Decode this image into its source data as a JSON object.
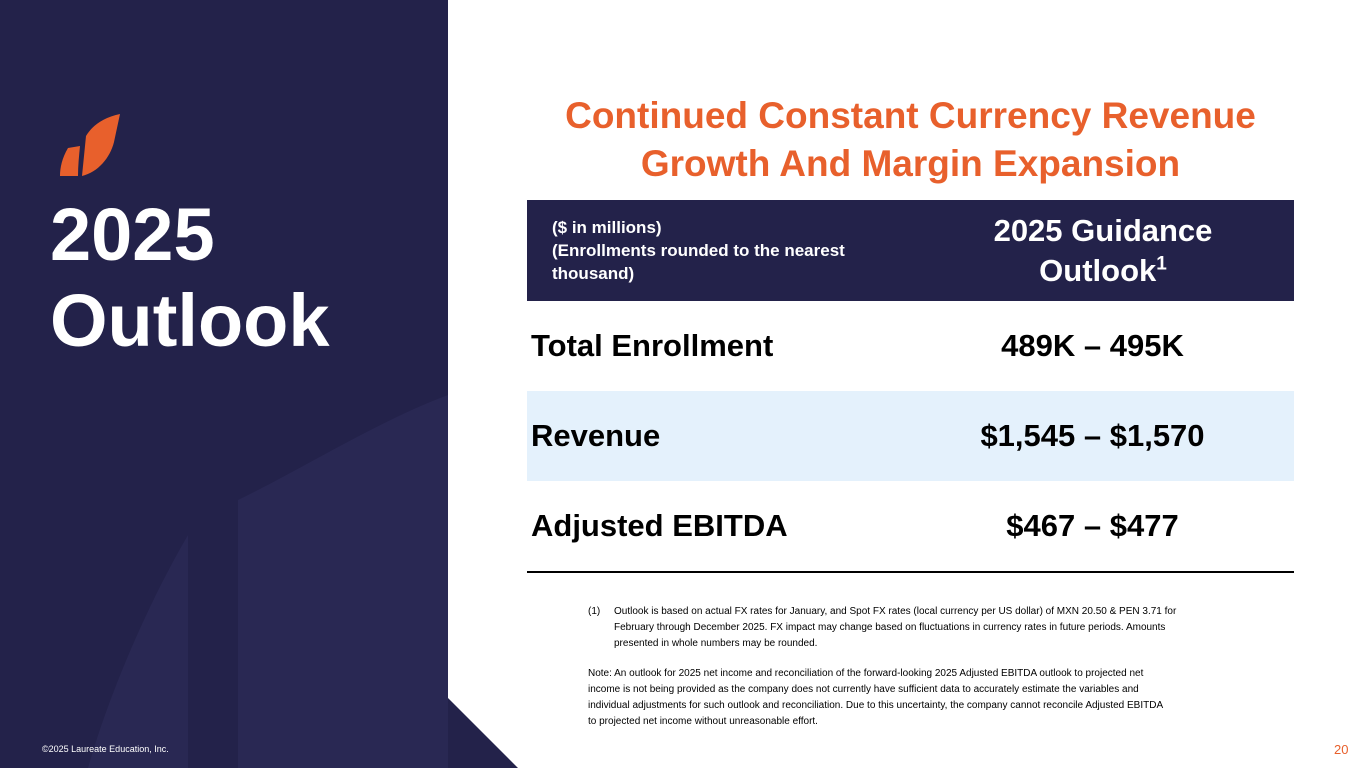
{
  "colors": {
    "navy": "#23224A",
    "accent": "#E8602C",
    "row_highlight": "#E4F1FC"
  },
  "left_panel": {
    "logo_icon": "laureate-leaf-logo",
    "title_lines": [
      "2025",
      "Outlook"
    ],
    "copyright": "©2025 Laureate Education, Inc."
  },
  "headline": {
    "lines": [
      "Continued Constant Currency Revenue",
      "Growth And Margin Expansion"
    ]
  },
  "table": {
    "header_note_lines": [
      "($ in millions)",
      "(Enrollments rounded to the nearest",
      "thousand)"
    ],
    "header_guidance_lines": [
      "2025 Guidance",
      "Outlook"
    ],
    "header_footnote_marker": "1",
    "rows": [
      {
        "label": "Total Enrollment",
        "value": "489K – 495K"
      },
      {
        "label": "Revenue",
        "value": "$1,545 – $1,570"
      },
      {
        "label": "Adjusted EBITDA",
        "value": "$467 – $477"
      }
    ]
  },
  "footnotes": {
    "fn1_number": "(1)",
    "fn1_lines": [
      "Outlook is based on actual FX rates for January, and Spot FX rates (local currency per US dollar) of MXN 20.50 & PEN 3.71 for",
      "February through December 2025. FX impact may change based on fluctuations in currency rates in future periods. Amounts",
      "presented in whole numbers may be rounded."
    ],
    "note_lines": [
      "Note: An outlook for 2025 net income and reconciliation of the forward-looking 2025 Adjusted EBITDA outlook to projected net",
      "income is not being provided as the company does not currently have sufficient data to accurately estimate the variables and",
      "individual adjustments for such outlook and reconciliation. Due to this uncertainty, the company cannot reconcile Adjusted EBITDA",
      "to projected net income without unreasonable effort."
    ]
  },
  "page_number": "20"
}
